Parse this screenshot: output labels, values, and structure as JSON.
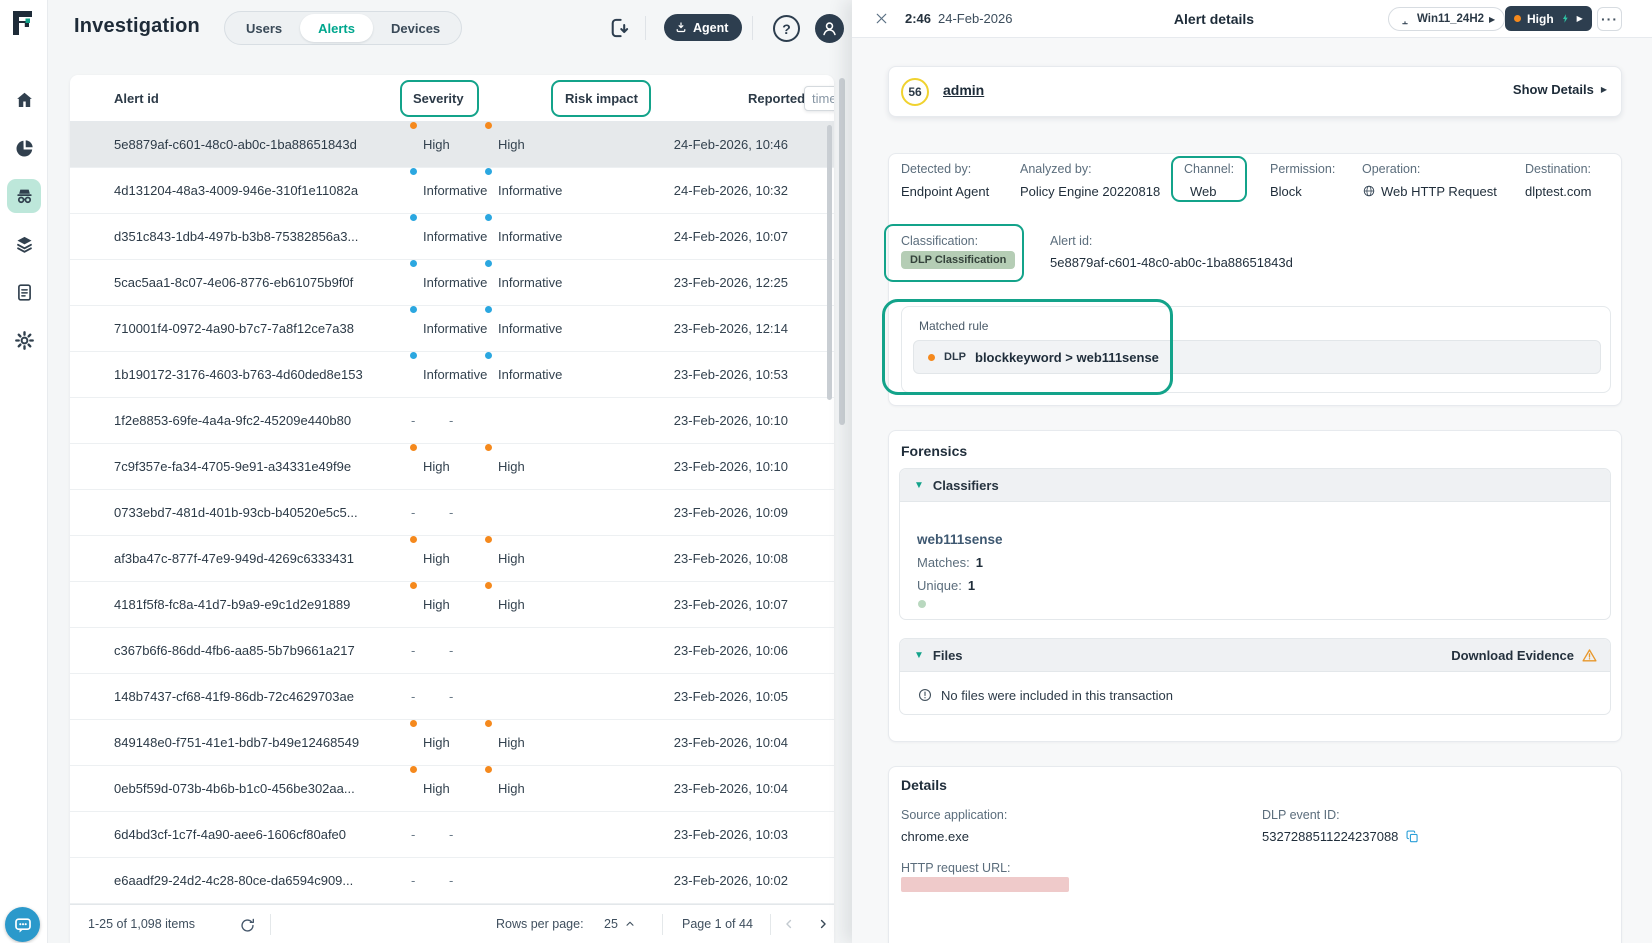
{
  "header": {
    "title": "Investigation",
    "tabs": [
      {
        "label": "Users",
        "active": false
      },
      {
        "label": "Alerts",
        "active": true
      },
      {
        "label": "Devices",
        "active": false
      }
    ],
    "agent_button": "Agent",
    "help_glyph": "?"
  },
  "sidebar": {
    "items": [
      {
        "name": "home",
        "icon": "home",
        "active": false
      },
      {
        "name": "analytics",
        "icon": "pie",
        "active": false
      },
      {
        "name": "investigation",
        "icon": "incognito",
        "active": true
      },
      {
        "name": "data-layers",
        "icon": "layers",
        "active": false
      },
      {
        "name": "reports",
        "icon": "doc",
        "active": false
      },
      {
        "name": "settings",
        "icon": "gear",
        "active": false
      }
    ]
  },
  "table": {
    "columns": {
      "alert_id": "Alert id",
      "severity": "Severity",
      "risk_impact": "Risk impact",
      "reported": "Reported",
      "reported_overlay": "time"
    },
    "rows": [
      {
        "id": "5e8879af-c601-48c0-ab0c-1ba88651843d",
        "severity": "High",
        "risk": "High",
        "time": "24-Feb-2026, 10:46",
        "selected": true
      },
      {
        "id": "4d131204-48a3-4009-946e-310f1e11082a",
        "severity": "Informative",
        "risk": "Informative",
        "time": "24-Feb-2026, 10:32",
        "selected": false
      },
      {
        "id": "d351c843-1db4-497b-b3b8-75382856a3...",
        "severity": "Informative",
        "risk": "Informative",
        "time": "24-Feb-2026, 10:07",
        "selected": false
      },
      {
        "id": "5cac5aa1-8c07-4e06-8776-eb61075b9f0f",
        "severity": "Informative",
        "risk": "Informative",
        "time": "23-Feb-2026, 12:25",
        "selected": false
      },
      {
        "id": "710001f4-0972-4a90-b7c7-7a8f12ce7a38",
        "severity": "Informative",
        "risk": "Informative",
        "time": "23-Feb-2026, 12:14",
        "selected": false
      },
      {
        "id": "1b190172-3176-4603-b763-4d60ded8e153",
        "severity": "Informative",
        "risk": "Informative",
        "time": "23-Feb-2026, 10:53",
        "selected": false
      },
      {
        "id": "1f2e8853-69fe-4a4a-9fc2-45209e440b80",
        "severity": "-",
        "risk": "-",
        "time": "23-Feb-2026, 10:10",
        "selected": false
      },
      {
        "id": "7c9f357e-fa34-4705-9e91-a34331e49f9e",
        "severity": "High",
        "risk": "High",
        "time": "23-Feb-2026, 10:10",
        "selected": false
      },
      {
        "id": "0733ebd7-481d-401b-93cb-b40520e5c5...",
        "severity": "-",
        "risk": "-",
        "time": "23-Feb-2026, 10:09",
        "selected": false
      },
      {
        "id": "af3ba47c-877f-47e9-949d-4269c6333431",
        "severity": "High",
        "risk": "High",
        "time": "23-Feb-2026, 10:08",
        "selected": false
      },
      {
        "id": "4181f5f8-fc8a-41d7-b9a9-e9c1d2e91889",
        "severity": "High",
        "risk": "High",
        "time": "23-Feb-2026, 10:07",
        "selected": false
      },
      {
        "id": "c367b6f6-86dd-4fb6-aa85-5b7b9661a217",
        "severity": "-",
        "risk": "-",
        "time": "23-Feb-2026, 10:06",
        "selected": false
      },
      {
        "id": "148b7437-cf68-41f9-86db-72c4629703ae",
        "severity": "-",
        "risk": "-",
        "time": "23-Feb-2026, 10:05",
        "selected": false
      },
      {
        "id": "849148e0-f751-41e1-bdb7-b49e12468549",
        "severity": "High",
        "risk": "High",
        "time": "23-Feb-2026, 10:04",
        "selected": false
      },
      {
        "id": "0eb5f59d-073b-4b6b-b1c0-456be302aa...",
        "severity": "High",
        "risk": "High",
        "time": "23-Feb-2026, 10:04",
        "selected": false
      },
      {
        "id": "6d4bd3cf-1c7f-4a90-aee6-1606cf80afe0",
        "severity": "-",
        "risk": "-",
        "time": "23-Feb-2026, 10:03",
        "selected": false
      },
      {
        "id": "e6aadf29-24d2-4c28-80ce-da6594c909...",
        "severity": "-",
        "risk": "-",
        "time": "23-Feb-2026, 10:02",
        "selected": false
      }
    ],
    "pagination": {
      "range": "1-25 of 1,098 items",
      "rows_per_page_label": "Rows per page:",
      "rows_per_page": "25",
      "page": "Page 1 of 44"
    }
  },
  "panel": {
    "header": {
      "time": "2:46",
      "date": "24-Feb-2026",
      "title": "Alert details",
      "device": "Win11_24H2",
      "severity": "High",
      "more": "···"
    },
    "user": {
      "score": "56",
      "name": "admin",
      "show_details": "Show Details"
    },
    "fields": [
      {
        "label": "Detected by:",
        "value": "Endpoint Agent"
      },
      {
        "label": "Analyzed by:",
        "value": "Policy Engine 20220818"
      },
      {
        "label": "Channel:",
        "value": "Web"
      },
      {
        "label": "Permission:",
        "value": "Block"
      },
      {
        "label": "Operation:",
        "value": "Web HTTP Request"
      },
      {
        "label": "Destination:",
        "value": "dlptest.com"
      }
    ],
    "classification": {
      "label": "Classification:",
      "badge": "DLP Classification"
    },
    "alert_id": {
      "label": "Alert id:",
      "value": "5e8879af-c601-48c0-ab0c-1ba88651843d"
    },
    "matched_rule": {
      "title": "Matched rule",
      "tag": "DLP",
      "rule": "blockkeyword > web111sense"
    },
    "forensics": {
      "title": "Forensics",
      "classifiers": {
        "title": "Classifiers",
        "name": "web111sense",
        "matches_label": "Matches:",
        "matches": "1",
        "unique_label": "Unique:",
        "unique": "1"
      },
      "files": {
        "title": "Files",
        "download": "Download Evidence",
        "empty": "No files were included in this transaction"
      }
    },
    "details": {
      "title": "Details",
      "source_label": "Source application:",
      "source": "chrome.exe",
      "dlp_label": "DLP event ID:",
      "dlp_id": "5327288511224237088",
      "url_label": "HTTP request URL:"
    }
  },
  "icons": {
    "collapse": "▼",
    "play": "▶",
    "dash": "-"
  },
  "colors": {
    "annotation": "#13A38A",
    "high": "#F5891D",
    "informative": "#2BA7E0",
    "accent_teal": "#00A78E",
    "dark_navy": "#2D3E4F",
    "badge_bg": "#B5CDB5",
    "score_yellow": "#F0D22F",
    "copy_blue": "#2B9FD8",
    "chat_blue": "#2B99CB",
    "redaction": "#EFCACA",
    "lightning": "#2EC4A5",
    "warning": "#E8982C"
  }
}
